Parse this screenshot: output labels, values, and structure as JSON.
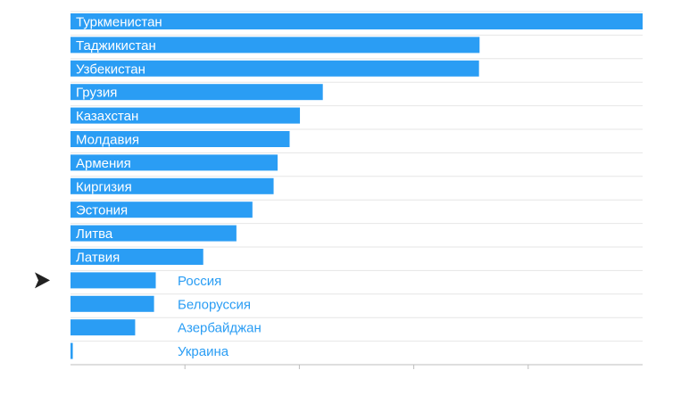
{
  "chart_data": {
    "type": "bar",
    "orientation": "horizontal",
    "title": "",
    "xlabel": "",
    "ylabel": "",
    "xlim": [
      0,
      100
    ],
    "grid": true,
    "tick_labels_shown": false,
    "highlighted_category": "Россия",
    "bar_color": "#2a9df4",
    "label_color_inside": "#ffffff",
    "label_color_outside": "#2a9df4",
    "marker_color": "#222222",
    "categories": [
      "Туркменистан",
      "Таджикистан",
      "Узбекистан",
      "Грузия",
      "Казахстан",
      "Молдавия",
      "Армения",
      "Киргизия",
      "Эстония",
      "Литва",
      "Латвия",
      "Россия",
      "Белоруссия",
      "Азербайджан",
      "Украина"
    ],
    "values": [
      100,
      71.5,
      71.4,
      44.1,
      40.1,
      38.3,
      36.2,
      35.5,
      31.8,
      29.0,
      23.2,
      14.9,
      14.6,
      11.3,
      0.4
    ]
  }
}
